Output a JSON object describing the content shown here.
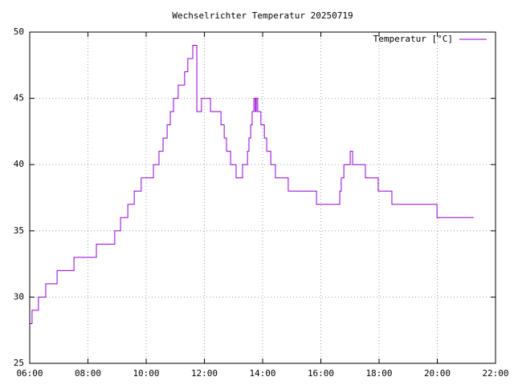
{
  "chart_data": {
    "type": "line",
    "title": "Wechselrichter Temperatur 20250719",
    "grid": true,
    "legend": "top-right",
    "xlim": [
      6,
      22
    ],
    "xticks": [
      {
        "value": 6,
        "label": "06:00"
      },
      {
        "value": 8,
        "label": "08:00"
      },
      {
        "value": 10,
        "label": "10:00"
      },
      {
        "value": 12,
        "label": "12:00"
      },
      {
        "value": 14,
        "label": "14:00"
      },
      {
        "value": 16,
        "label": "16:00"
      },
      {
        "value": 18,
        "label": "18:00"
      },
      {
        "value": 20,
        "label": "20:00"
      },
      {
        "value": 22,
        "label": "22:00"
      }
    ],
    "ylim": [
      25,
      50
    ],
    "yticks": [
      25,
      30,
      35,
      40,
      45,
      50
    ],
    "x": [
      6.0,
      6.08,
      6.08,
      6.3,
      6.3,
      6.55,
      6.55,
      6.94,
      6.94,
      7.52,
      7.52,
      8.29,
      8.29,
      8.92,
      8.92,
      9.12,
      9.12,
      9.37,
      9.37,
      9.59,
      9.59,
      9.83,
      9.83,
      10.25,
      10.25,
      10.44,
      10.44,
      10.58,
      10.58,
      10.72,
      10.72,
      10.83,
      10.83,
      10.94,
      10.94,
      11.1,
      11.1,
      11.32,
      11.32,
      11.43,
      11.43,
      11.6,
      11.6,
      11.74,
      11.74,
      11.9,
      11.9,
      12.21,
      12.21,
      12.57,
      12.57,
      12.68,
      12.68,
      12.76,
      12.76,
      12.9,
      12.9,
      13.09,
      13.09,
      13.31,
      13.31,
      13.48,
      13.48,
      13.53,
      13.53,
      13.59,
      13.59,
      13.64,
      13.64,
      13.7,
      13.7,
      13.75,
      13.75,
      13.78,
      13.78,
      13.83,
      13.83,
      13.94,
      13.94,
      14.06,
      14.06,
      14.14,
      14.14,
      14.28,
      14.28,
      14.44,
      14.44,
      14.88,
      14.88,
      15.85,
      15.85,
      16.65,
      16.65,
      16.7,
      16.7,
      16.79,
      16.79,
      17.01,
      17.01,
      17.09,
      17.09,
      17.53,
      17.53,
      17.97,
      17.97,
      18.44,
      18.44,
      19.99,
      19.99,
      21.25
    ],
    "series": [
      {
        "name": "Temperatur [°C]",
        "color": "#9400d3",
        "values": [
          28,
          28,
          29,
          29,
          30,
          30,
          31,
          31,
          32,
          32,
          33,
          33,
          34,
          34,
          35,
          35,
          36,
          36,
          37,
          37,
          38,
          38,
          39,
          39,
          40,
          40,
          41,
          41,
          42,
          42,
          43,
          43,
          44,
          44,
          45,
          45,
          46,
          46,
          47,
          47,
          48,
          48,
          49,
          49,
          44,
          44,
          45,
          45,
          44,
          44,
          43,
          43,
          42,
          42,
          41,
          41,
          40,
          40,
          39,
          39,
          40,
          40,
          41,
          41,
          42,
          42,
          43,
          43,
          44,
          44,
          45,
          45,
          44,
          44,
          45,
          45,
          44,
          44,
          43,
          43,
          42,
          42,
          41,
          41,
          40,
          40,
          39,
          39,
          38,
          38,
          37,
          37,
          38,
          38,
          39,
          39,
          40,
          40,
          41,
          41,
          40,
          40,
          39,
          39,
          38,
          38,
          37,
          37,
          36,
          36
        ]
      }
    ]
  }
}
